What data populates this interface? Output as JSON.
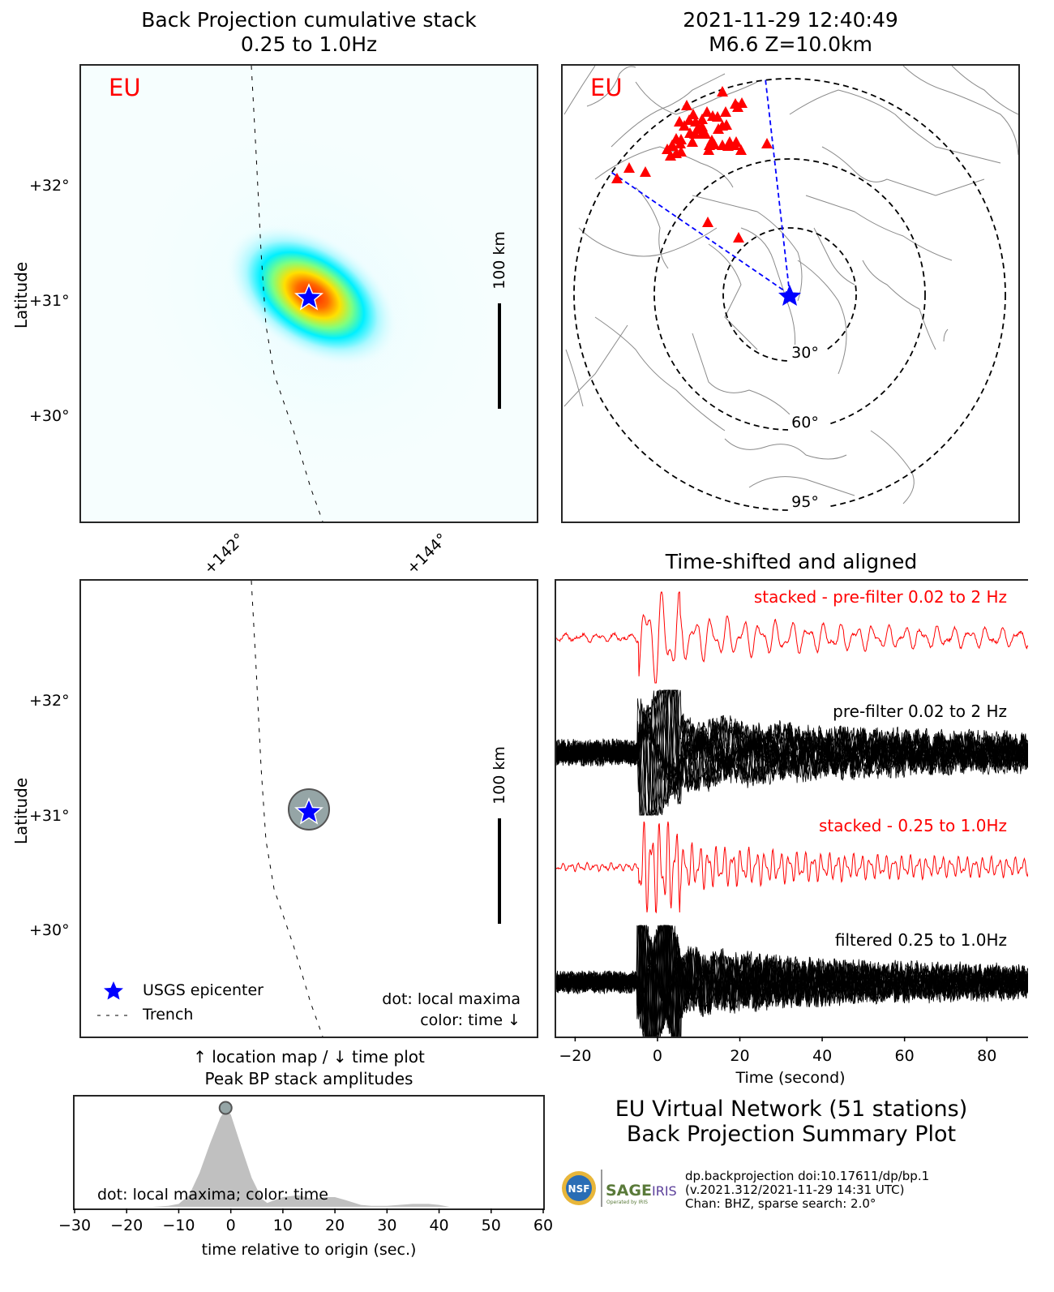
{
  "event": {
    "datetime": "2021-11-29 12:40:49",
    "magdepth": "M6.6 Z=10.0km"
  },
  "colors": {
    "accent_red": "#ff0000",
    "epicenter_blue": "#0000ff",
    "gridline_blue": "#0000ff",
    "maxima_dot": "#95a5a6",
    "amplitude_fill": "#c0c0c0",
    "coast_gray": "#808080"
  },
  "bp_stack": {
    "title_line1": "Back Projection cumulative stack",
    "title_line2": "0.25 to 1.0Hz",
    "network_label": "EU",
    "ylabel": "Latitude",
    "lat_ticks": [
      "+32°",
      "+31°",
      "+30°"
    ],
    "lon_ticks": [
      "+142°",
      "+144°"
    ],
    "scale_label": "100 km"
  },
  "station_map": {
    "network_label": "EU",
    "distance_rings": [
      "30°",
      "60°",
      "95°"
    ],
    "station_count_shown": 51
  },
  "location_map": {
    "ylabel": "Latitude",
    "lat_ticks": [
      "+32°",
      "+31°",
      "+30°"
    ],
    "scale_label": "100 km",
    "legend": {
      "epicenter": "USGS epicenter",
      "trench": "Trench"
    },
    "note_line1": "dot: local maxima",
    "note_line2": "color: time ↓"
  },
  "middle_caption": {
    "line1": "↑ location map / ↓ time plot",
    "line2": "Peak BP stack amplitudes"
  },
  "traces": {
    "title": "Time-shifted and aligned",
    "labels": [
      "stacked - pre-filter 0.02 to 2 Hz",
      "pre-filter 0.02 to 2 Hz",
      "stacked - 0.25 to 1.0Hz",
      "filtered 0.25 to 1.0Hz"
    ],
    "xlabel": "Time (second)",
    "x_ticks": [
      "−20",
      "0",
      "20",
      "40",
      "60",
      "80"
    ],
    "xlim": [
      -25,
      90
    ]
  },
  "summary": {
    "line1": "EU Virtual Network (51 stations)",
    "line2": "Back Projection Summary Plot"
  },
  "credits": {
    "line1": "dp.backprojection doi:10.17611/dp/bp.1",
    "line2": "(v.2021.312/2021-11-29 14:31 UTC)",
    "line3": "Chan: BHZ, sparse search: 2.0°",
    "logo_nsf": "NSF",
    "logo_sage": "SAGE",
    "logo_iris": "IRIS",
    "logo_operated": "Operated by IRIS"
  },
  "chart_data": [
    {
      "type": "heatmap",
      "title": "Back Projection cumulative stack 0.25 to 1.0Hz",
      "xlabel": "",
      "ylabel": "Latitude",
      "x_ticks": [
        "+142°",
        "+144°"
      ],
      "y_ticks": [
        "+32°",
        "+31°",
        "+30°"
      ],
      "xlim": [
        140.6,
        145.0
      ],
      "ylim": [
        29.1,
        33.0
      ],
      "peak": {
        "lon": 142.7,
        "lat": 31.05
      },
      "epicenter": {
        "lon": 142.7,
        "lat": 31.05
      },
      "ellipse_orientation": "NW-SE",
      "colormap": "jet (white low → cyan → yellow → red high)"
    },
    {
      "type": "scatter",
      "title": "Station map (azimuthal equidistant)",
      "rings_deg": [
        30,
        60,
        95
      ],
      "series": [
        {
          "name": "stations",
          "marker": "triangle",
          "color": "#ff0000",
          "count": 51
        },
        {
          "name": "epicenter",
          "marker": "star",
          "color": "#0000ff"
        }
      ]
    },
    {
      "type": "scatter",
      "title": "Location map",
      "ylabel": "Latitude",
      "y_ticks": [
        "+32°",
        "+31°",
        "+30°"
      ],
      "series": [
        {
          "name": "USGS epicenter",
          "points": [
            {
              "lon": 142.7,
              "lat": 31.05
            }
          ]
        },
        {
          "name": "local maxima",
          "points": [
            {
              "lon": 142.7,
              "lat": 31.05,
              "time": -1
            }
          ]
        }
      ]
    },
    {
      "type": "line",
      "title": "Time-shifted and aligned",
      "xlabel": "Time (second)",
      "x_ticks": [
        -20,
        0,
        20,
        40,
        60,
        80
      ],
      "xlim": [
        -25,
        90
      ],
      "series": [
        {
          "name": "stacked - pre-filter 0.02 to 2 Hz",
          "color": "#ff0000"
        },
        {
          "name": "pre-filter 0.02 to 2 Hz",
          "color": "#000000",
          "count": 51
        },
        {
          "name": "stacked - 0.25 to 1.0Hz",
          "color": "#ff0000"
        },
        {
          "name": "filtered 0.25 to 1.0Hz",
          "color": "#000000",
          "count": 51
        }
      ],
      "p_arrival_s": -5
    },
    {
      "type": "area",
      "title": "Peak BP stack amplitudes",
      "xlabel": "time relative to origin (sec.)",
      "x_ticks": [
        -30,
        -20,
        -10,
        0,
        10,
        20,
        30,
        40,
        50,
        60
      ],
      "xlim": [
        -30,
        60
      ],
      "ylim": [
        0,
        1.1
      ],
      "x": [
        -30,
        -15,
        -12,
        -10,
        -8,
        -6,
        -4,
        -2,
        -1,
        0,
        2,
        4,
        6,
        7,
        8,
        10,
        13,
        15,
        16,
        18,
        20,
        22,
        25,
        27,
        30,
        35,
        38,
        40,
        42,
        60
      ],
      "y": [
        0,
        0,
        0.01,
        0.03,
        0.12,
        0.35,
        0.65,
        0.92,
        1.0,
        0.95,
        0.62,
        0.3,
        0.08,
        0.04,
        0.06,
        0.1,
        0.12,
        0.09,
        0.08,
        0.1,
        0.1,
        0.07,
        0.02,
        0.01,
        0.01,
        0.03,
        0.03,
        0.02,
        0.0,
        0
      ],
      "annotation": "dot: local maxima; color: time",
      "maxima": [
        {
          "t": -1,
          "amp": 1.0
        }
      ]
    }
  ]
}
